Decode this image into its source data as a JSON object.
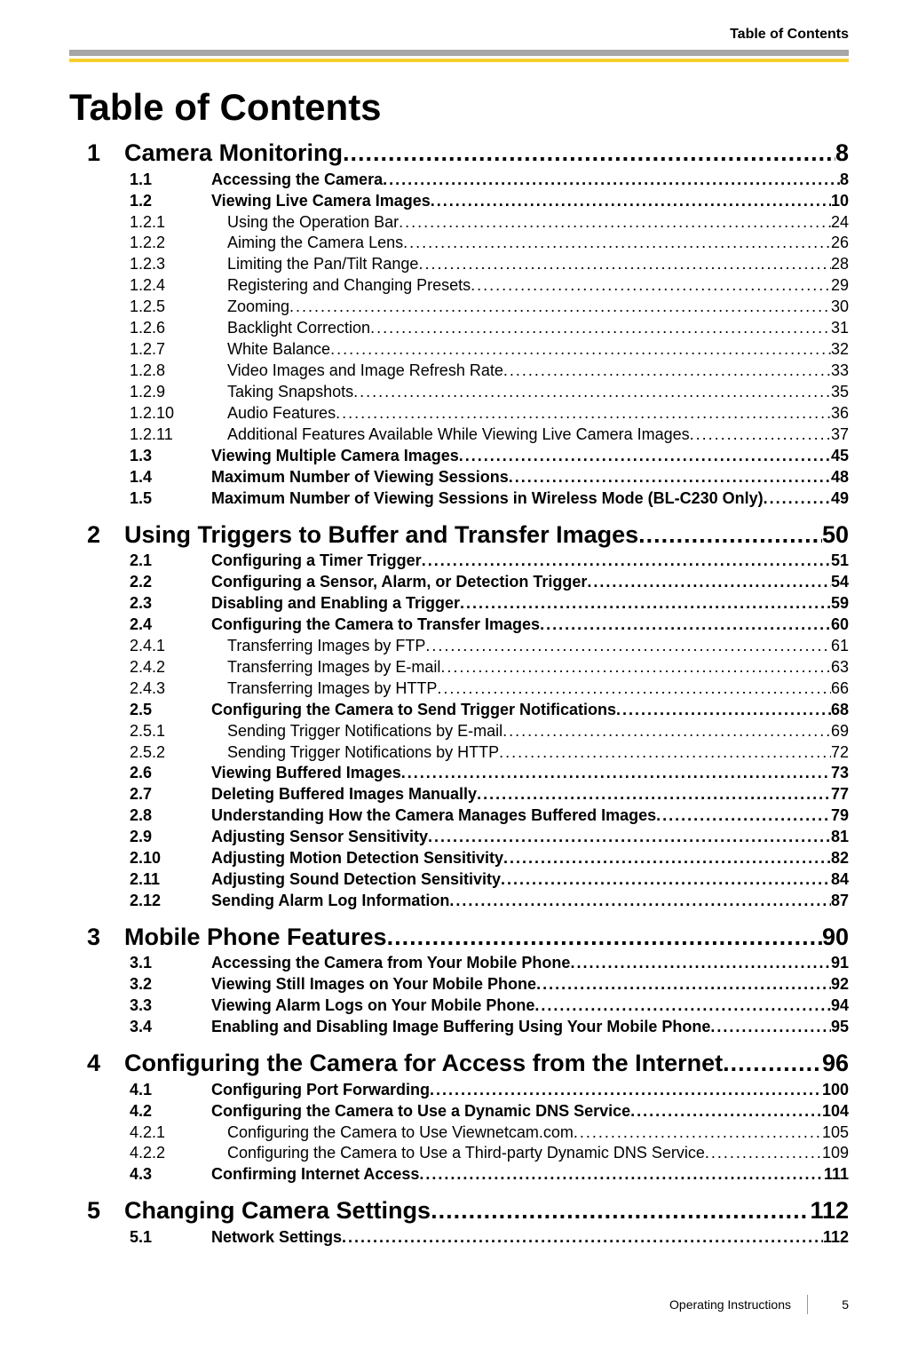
{
  "running_head": "Table of Contents",
  "title": "Table of Contents",
  "footer": {
    "label": "Operating Instructions",
    "page": "5"
  },
  "entries": [
    {
      "level": 1,
      "num": "1",
      "label": "Camera Monitoring",
      "page": "8"
    },
    {
      "level": 2,
      "num": "1.1",
      "label": "Accessing the Camera",
      "page": "8"
    },
    {
      "level": 2,
      "num": "1.2",
      "label": "Viewing Live Camera Images",
      "page": "10"
    },
    {
      "level": 3,
      "num": "1.2.1",
      "label": "Using the Operation Bar",
      "page": "24"
    },
    {
      "level": 3,
      "num": "1.2.2",
      "label": "Aiming the Camera Lens",
      "page": "26"
    },
    {
      "level": 3,
      "num": "1.2.3",
      "label": "Limiting the Pan/Tilt Range",
      "page": "28"
    },
    {
      "level": 3,
      "num": "1.2.4",
      "label": "Registering and Changing Presets",
      "page": "29"
    },
    {
      "level": 3,
      "num": "1.2.5",
      "label": "Zooming",
      "page": "30"
    },
    {
      "level": 3,
      "num": "1.2.6",
      "label": "Backlight Correction",
      "page": "31"
    },
    {
      "level": 3,
      "num": "1.2.7",
      "label": "White Balance",
      "page": "32"
    },
    {
      "level": 3,
      "num": "1.2.8",
      "label": "Video Images and Image Refresh Rate",
      "page": "33"
    },
    {
      "level": 3,
      "num": "1.2.9",
      "label": "Taking Snapshots",
      "page": "35"
    },
    {
      "level": 3,
      "num": "1.2.10",
      "label": "Audio Features",
      "page": "36"
    },
    {
      "level": 3,
      "num": "1.2.11",
      "label": "Additional Features Available While Viewing Live Camera Images",
      "page": "37"
    },
    {
      "level": 2,
      "num": "1.3",
      "label": "Viewing Multiple Camera Images",
      "page": "45"
    },
    {
      "level": 2,
      "num": "1.4",
      "label": "Maximum Number of Viewing Sessions",
      "page": "48"
    },
    {
      "level": 2,
      "num": "1.5",
      "label": "Maximum Number of Viewing Sessions in Wireless Mode (BL-C230 Only)",
      "page": "49"
    },
    {
      "level": 1,
      "num": "2",
      "label": "Using Triggers to Buffer and Transfer Images",
      "page": "50"
    },
    {
      "level": 2,
      "num": "2.1",
      "label": "Configuring a Timer Trigger",
      "page": "51"
    },
    {
      "level": 2,
      "num": "2.2",
      "label": "Configuring a Sensor, Alarm, or Detection Trigger",
      "page": "54"
    },
    {
      "level": 2,
      "num": "2.3",
      "label": "Disabling and Enabling a Trigger",
      "page": "59"
    },
    {
      "level": 2,
      "num": "2.4",
      "label": "Configuring the Camera to Transfer Images",
      "page": "60"
    },
    {
      "level": 3,
      "num": "2.4.1",
      "label": "Transferring Images by FTP",
      "page": "61"
    },
    {
      "level": 3,
      "num": "2.4.2",
      "label": "Transferring Images by E-mail",
      "page": "63"
    },
    {
      "level": 3,
      "num": "2.4.3",
      "label": "Transferring Images by HTTP",
      "page": "66"
    },
    {
      "level": 2,
      "num": "2.5",
      "label": "Configuring the Camera to Send Trigger Notifications",
      "page": "68"
    },
    {
      "level": 3,
      "num": "2.5.1",
      "label": "Sending Trigger Notifications by E-mail",
      "page": "69"
    },
    {
      "level": 3,
      "num": "2.5.2",
      "label": "Sending Trigger Notifications by HTTP",
      "page": "72"
    },
    {
      "level": 2,
      "num": "2.6",
      "label": "Viewing Buffered Images",
      "page": "73"
    },
    {
      "level": 2,
      "num": "2.7",
      "label": "Deleting Buffered Images Manually",
      "page": "77"
    },
    {
      "level": 2,
      "num": "2.8",
      "label": "Understanding How the Camera Manages Buffered Images",
      "page": "79"
    },
    {
      "level": 2,
      "num": "2.9",
      "label": "Adjusting Sensor Sensitivity",
      "page": "81"
    },
    {
      "level": 2,
      "num": "2.10",
      "label": "Adjusting Motion Detection Sensitivity",
      "page": "82"
    },
    {
      "level": 2,
      "num": "2.11",
      "label": "Adjusting Sound Detection Sensitivity",
      "page": "84"
    },
    {
      "level": 2,
      "num": "2.12",
      "label": "Sending Alarm Log Information",
      "page": "87"
    },
    {
      "level": 1,
      "num": "3",
      "label": "Mobile Phone Features",
      "page": "90"
    },
    {
      "level": 2,
      "num": "3.1",
      "label": "Accessing the Camera from Your Mobile Phone",
      "page": "91"
    },
    {
      "level": 2,
      "num": "3.2",
      "label": "Viewing Still Images on Your Mobile Phone",
      "page": "92"
    },
    {
      "level": 2,
      "num": "3.3",
      "label": "Viewing Alarm Logs on Your Mobile Phone",
      "page": "94"
    },
    {
      "level": 2,
      "num": "3.4",
      "label": "Enabling and Disabling Image Buffering Using Your Mobile Phone",
      "page": "95"
    },
    {
      "level": 1,
      "num": "4",
      "label": "Configuring the Camera for Access from the Internet",
      "page": "96"
    },
    {
      "level": 2,
      "num": "4.1",
      "label": "Configuring Port Forwarding",
      "page": "100"
    },
    {
      "level": 2,
      "num": "4.2",
      "label": "Configuring the Camera to Use a Dynamic DNS Service",
      "page": "104"
    },
    {
      "level": 3,
      "num": "4.2.1",
      "label": "Configuring the Camera to Use Viewnetcam.com",
      "page": "105"
    },
    {
      "level": 3,
      "num": "4.2.2",
      "label": "Configuring the Camera to Use a Third-party Dynamic DNS Service",
      "page": "109"
    },
    {
      "level": 2,
      "num": "4.3",
      "label": "Confirming Internet Access",
      "page": "111"
    },
    {
      "level": 1,
      "num": "5",
      "label": "Changing Camera Settings",
      "page": "112"
    },
    {
      "level": 2,
      "num": "5.1",
      "label": "Network Settings",
      "page": "112"
    }
  ]
}
